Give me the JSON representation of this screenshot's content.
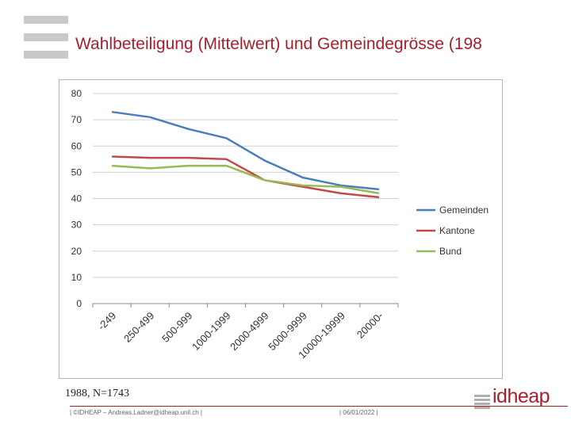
{
  "header": {
    "title": "Wahlbeteiligung (Mittelwert) und Gemeindegrösse (198"
  },
  "chart_data": {
    "type": "line",
    "categories": [
      "-249",
      "250-499",
      "500-999",
      "1000-1999",
      "2000-4999",
      "5000-9999",
      "10000-19999",
      "20000-"
    ],
    "series": [
      {
        "name": "Gemeinden",
        "color": "#4a7ebb",
        "values": [
          73,
          71,
          66.5,
          63,
          54.5,
          48,
          45,
          43.5
        ]
      },
      {
        "name": "Kantone",
        "color": "#be4b48",
        "values": [
          56,
          55.5,
          55.5,
          55,
          47,
          44.5,
          42,
          40.5
        ]
      },
      {
        "name": "Bund",
        "color": "#98b954",
        "values": [
          52.5,
          51.5,
          52.5,
          52.5,
          47,
          45,
          44.5,
          42
        ]
      }
    ],
    "y_ticks": [
      "0",
      "10",
      "20",
      "30",
      "40",
      "50",
      "60",
      "70",
      "80"
    ],
    "ylim": [
      0,
      80
    ],
    "grid": true,
    "legend_position": "right",
    "title": "",
    "xlabel": "",
    "ylabel": ""
  },
  "note": "1988, N=1743",
  "footer": {
    "left": "| ©IDHEAP – Andreas.Ladner@idheap.unil.ch |",
    "date": "| 06/01/2022 |"
  },
  "logo": {
    "text": "idheap"
  }
}
